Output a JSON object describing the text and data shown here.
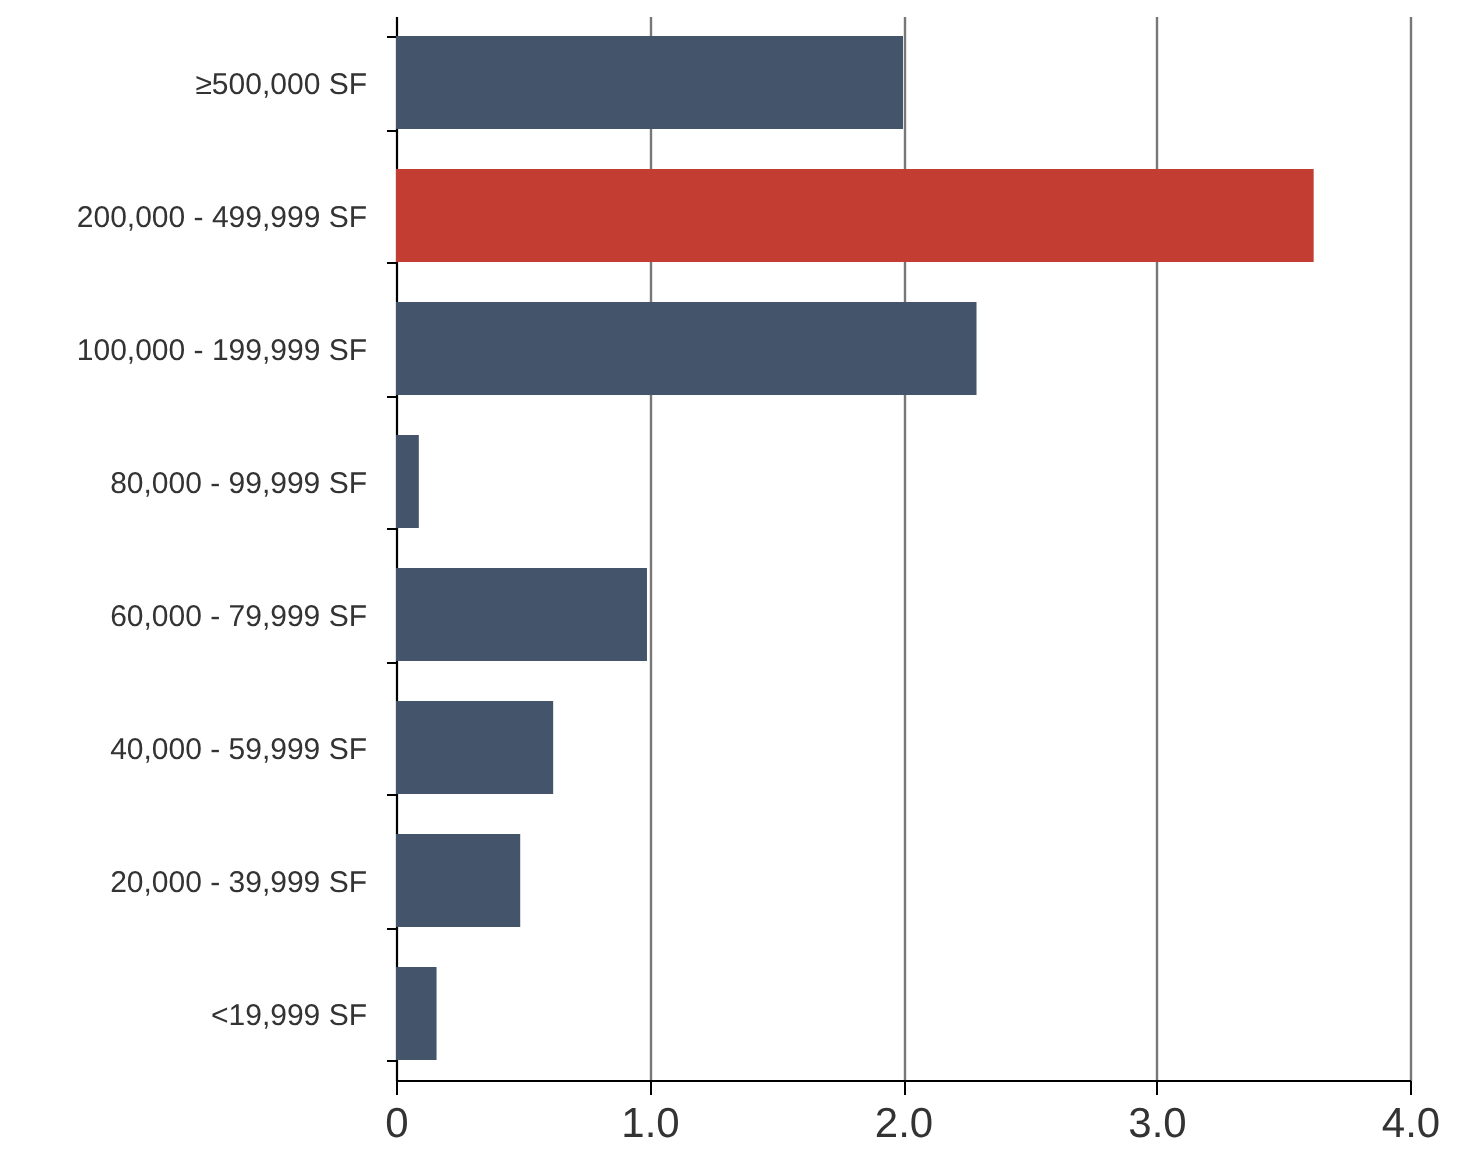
{
  "chart_data": {
    "type": "bar",
    "orientation": "horizontal",
    "categories": [
      "≥500,000 SF",
      "200,000 - 499,999 SF",
      "100,000 - 199,999 SF",
      "80,000 - 99,999 SF",
      "60,000 - 79,999 SF",
      "40,000 - 59,999 SF",
      "20,000 - 39,999 SF",
      "<19,999 SF"
    ],
    "values": [
      2.0,
      3.62,
      2.29,
      0.09,
      0.99,
      0.62,
      0.49,
      0.16
    ],
    "colors": [
      "#44546a",
      "#c33d33",
      "#44546a",
      "#44546a",
      "#44546a",
      "#44546a",
      "#44546a",
      "#44546a"
    ],
    "xlim": [
      0,
      4
    ],
    "xticks": [
      {
        "value": 0,
        "label": "0"
      },
      {
        "value": 1,
        "label": "1.0"
      },
      {
        "value": 2,
        "label": "2.0"
      },
      {
        "value": 3,
        "label": "3.0"
      },
      {
        "value": 4,
        "label": "4.0"
      }
    ],
    "grid": "x",
    "legend": false
  }
}
